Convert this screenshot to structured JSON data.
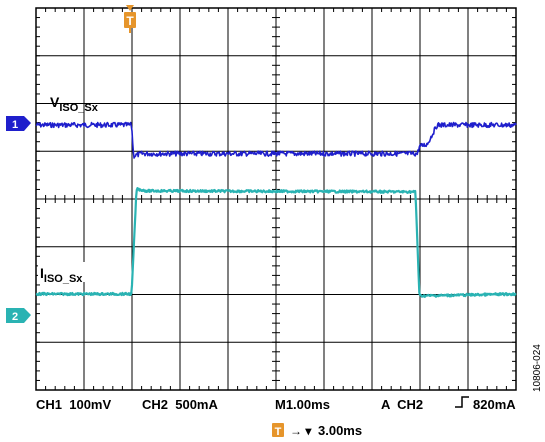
{
  "chart_data": {
    "type": "line",
    "title": "",
    "xlabel": "",
    "ylabel": "",
    "grid": true,
    "x_unit": "ms",
    "xlim": [
      -0.97,
      3.9
    ],
    "time_per_div": "1.00ms",
    "trigger_marker": "T",
    "channels": [
      {
        "id": "1",
        "color": "#1f1fcc"
      },
      {
        "id": "2",
        "color": "#2ab3b3"
      }
    ],
    "series": [
      {
        "name": "V_ISO_Sx",
        "channel": "1",
        "unit": "mV",
        "volts_per_div": "100mV",
        "x": [
          -0.97,
          0.0,
          0.02,
          0.1,
          2.9,
          2.92,
          3.0,
          3.1,
          3.9
        ],
        "y": [
          0,
          0,
          -65,
          -60,
          -60,
          -45,
          -40,
          0,
          0
        ]
      },
      {
        "name": "I_ISO_Sx",
        "channel": "2",
        "unit": "mA",
        "volts_per_div": "500mA",
        "x": [
          -0.97,
          0.0,
          0.05,
          0.15,
          2.88,
          2.92,
          3.9
        ],
        "y": [
          0,
          0,
          1100,
          1080,
          1070,
          -20,
          0
        ]
      }
    ],
    "labels": {
      "ch1_label_main": "V",
      "ch1_label_sub": "ISO_Sx",
      "ch2_label_main": "I",
      "ch2_label_sub": "ISO_Sx"
    },
    "readouts": {
      "ch1_scale": "CH1  100mV",
      "ch2_scale": "CH2  500mA",
      "timebase": "M1.00ms",
      "trigger": "A  CH2  ⅁ 820mA",
      "trigger_source": "A  CH2",
      "trigger_level": "820mA",
      "trigger_delay": "3.00ms",
      "trigger_delay_prefix": "→ ▾"
    },
    "figure_id": "10806-024"
  }
}
